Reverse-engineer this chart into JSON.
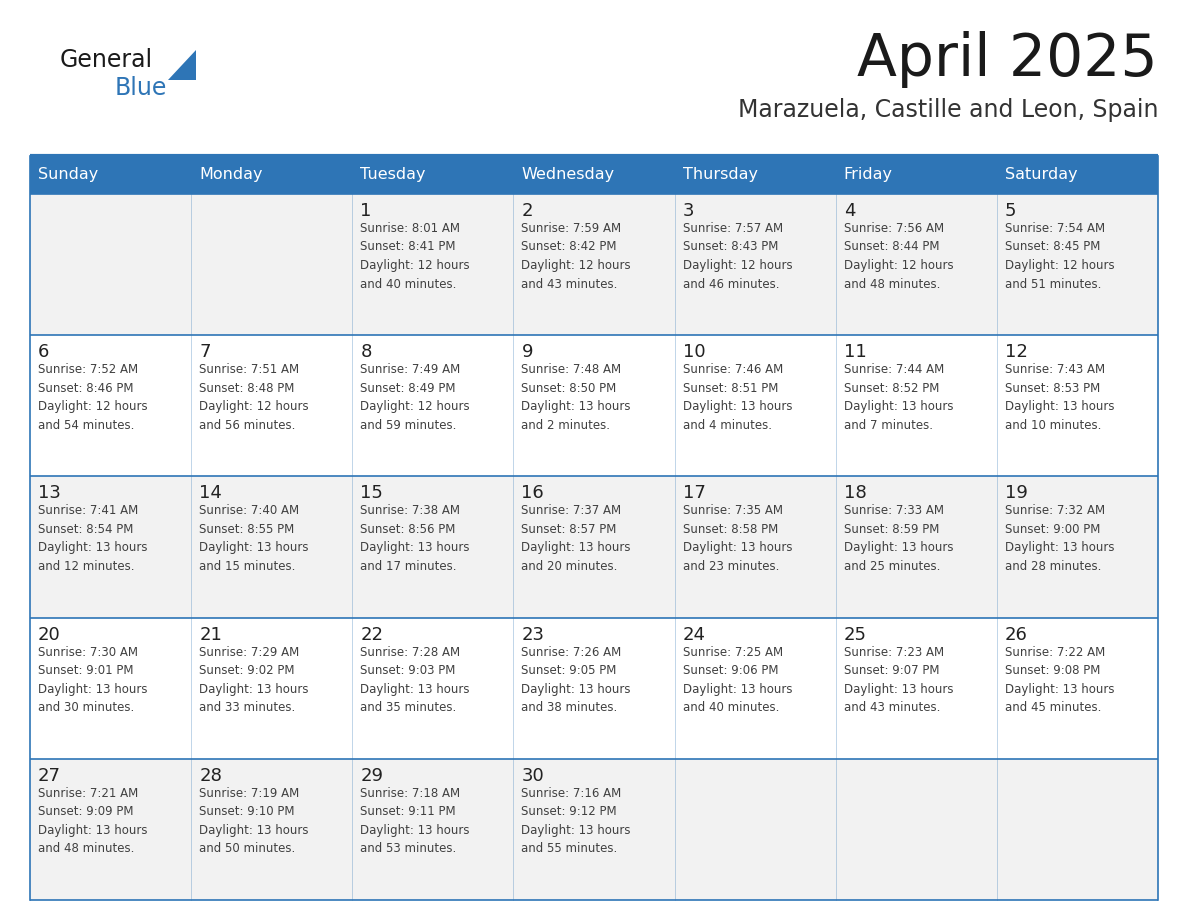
{
  "title": "April 2025",
  "subtitle": "Marazuela, Castille and Leon, Spain",
  "header_bg": "#2E75B6",
  "header_text": "#FFFFFF",
  "day_names": [
    "Sunday",
    "Monday",
    "Tuesday",
    "Wednesday",
    "Thursday",
    "Friday",
    "Saturday"
  ],
  "cell_bg_odd": "#F2F2F2",
  "cell_bg_even": "#FFFFFF",
  "divider_color": "#2E75B6",
  "day_num_color": "#222222",
  "cell_text_color": "#404040",
  "title_color": "#1a1a1a",
  "subtitle_color": "#333333",
  "logo_text_color": "#1a1a1a",
  "logo_blue_color": "#2E75B6",
  "calendar": [
    [
      {
        "day": null,
        "text": ""
      },
      {
        "day": null,
        "text": ""
      },
      {
        "day": 1,
        "text": "Sunrise: 8:01 AM\nSunset: 8:41 PM\nDaylight: 12 hours\nand 40 minutes."
      },
      {
        "day": 2,
        "text": "Sunrise: 7:59 AM\nSunset: 8:42 PM\nDaylight: 12 hours\nand 43 minutes."
      },
      {
        "day": 3,
        "text": "Sunrise: 7:57 AM\nSunset: 8:43 PM\nDaylight: 12 hours\nand 46 minutes."
      },
      {
        "day": 4,
        "text": "Sunrise: 7:56 AM\nSunset: 8:44 PM\nDaylight: 12 hours\nand 48 minutes."
      },
      {
        "day": 5,
        "text": "Sunrise: 7:54 AM\nSunset: 8:45 PM\nDaylight: 12 hours\nand 51 minutes."
      }
    ],
    [
      {
        "day": 6,
        "text": "Sunrise: 7:52 AM\nSunset: 8:46 PM\nDaylight: 12 hours\nand 54 minutes."
      },
      {
        "day": 7,
        "text": "Sunrise: 7:51 AM\nSunset: 8:48 PM\nDaylight: 12 hours\nand 56 minutes."
      },
      {
        "day": 8,
        "text": "Sunrise: 7:49 AM\nSunset: 8:49 PM\nDaylight: 12 hours\nand 59 minutes."
      },
      {
        "day": 9,
        "text": "Sunrise: 7:48 AM\nSunset: 8:50 PM\nDaylight: 13 hours\nand 2 minutes."
      },
      {
        "day": 10,
        "text": "Sunrise: 7:46 AM\nSunset: 8:51 PM\nDaylight: 13 hours\nand 4 minutes."
      },
      {
        "day": 11,
        "text": "Sunrise: 7:44 AM\nSunset: 8:52 PM\nDaylight: 13 hours\nand 7 minutes."
      },
      {
        "day": 12,
        "text": "Sunrise: 7:43 AM\nSunset: 8:53 PM\nDaylight: 13 hours\nand 10 minutes."
      }
    ],
    [
      {
        "day": 13,
        "text": "Sunrise: 7:41 AM\nSunset: 8:54 PM\nDaylight: 13 hours\nand 12 minutes."
      },
      {
        "day": 14,
        "text": "Sunrise: 7:40 AM\nSunset: 8:55 PM\nDaylight: 13 hours\nand 15 minutes."
      },
      {
        "day": 15,
        "text": "Sunrise: 7:38 AM\nSunset: 8:56 PM\nDaylight: 13 hours\nand 17 minutes."
      },
      {
        "day": 16,
        "text": "Sunrise: 7:37 AM\nSunset: 8:57 PM\nDaylight: 13 hours\nand 20 minutes."
      },
      {
        "day": 17,
        "text": "Sunrise: 7:35 AM\nSunset: 8:58 PM\nDaylight: 13 hours\nand 23 minutes."
      },
      {
        "day": 18,
        "text": "Sunrise: 7:33 AM\nSunset: 8:59 PM\nDaylight: 13 hours\nand 25 minutes."
      },
      {
        "day": 19,
        "text": "Sunrise: 7:32 AM\nSunset: 9:00 PM\nDaylight: 13 hours\nand 28 minutes."
      }
    ],
    [
      {
        "day": 20,
        "text": "Sunrise: 7:30 AM\nSunset: 9:01 PM\nDaylight: 13 hours\nand 30 minutes."
      },
      {
        "day": 21,
        "text": "Sunrise: 7:29 AM\nSunset: 9:02 PM\nDaylight: 13 hours\nand 33 minutes."
      },
      {
        "day": 22,
        "text": "Sunrise: 7:28 AM\nSunset: 9:03 PM\nDaylight: 13 hours\nand 35 minutes."
      },
      {
        "day": 23,
        "text": "Sunrise: 7:26 AM\nSunset: 9:05 PM\nDaylight: 13 hours\nand 38 minutes."
      },
      {
        "day": 24,
        "text": "Sunrise: 7:25 AM\nSunset: 9:06 PM\nDaylight: 13 hours\nand 40 minutes."
      },
      {
        "day": 25,
        "text": "Sunrise: 7:23 AM\nSunset: 9:07 PM\nDaylight: 13 hours\nand 43 minutes."
      },
      {
        "day": 26,
        "text": "Sunrise: 7:22 AM\nSunset: 9:08 PM\nDaylight: 13 hours\nand 45 minutes."
      }
    ],
    [
      {
        "day": 27,
        "text": "Sunrise: 7:21 AM\nSunset: 9:09 PM\nDaylight: 13 hours\nand 48 minutes."
      },
      {
        "day": 28,
        "text": "Sunrise: 7:19 AM\nSunset: 9:10 PM\nDaylight: 13 hours\nand 50 minutes."
      },
      {
        "day": 29,
        "text": "Sunrise: 7:18 AM\nSunset: 9:11 PM\nDaylight: 13 hours\nand 53 minutes."
      },
      {
        "day": 30,
        "text": "Sunrise: 7:16 AM\nSunset: 9:12 PM\nDaylight: 13 hours\nand 55 minutes."
      },
      {
        "day": null,
        "text": ""
      },
      {
        "day": null,
        "text": ""
      },
      {
        "day": null,
        "text": ""
      }
    ]
  ]
}
